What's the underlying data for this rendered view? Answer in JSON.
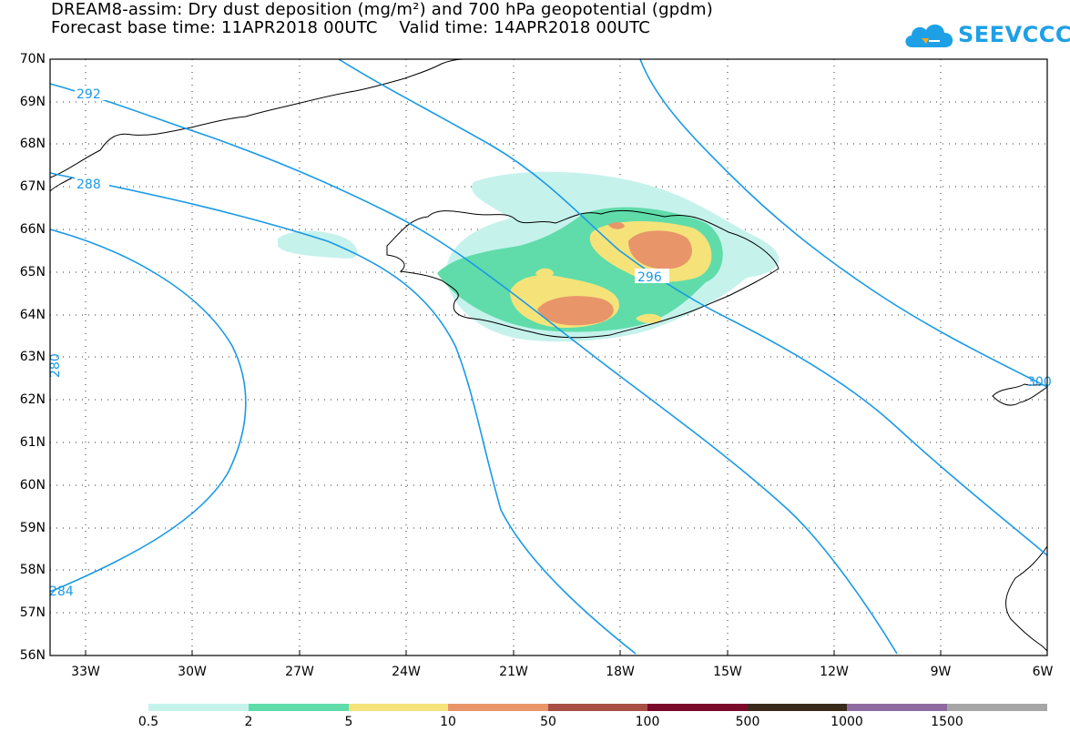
{
  "title_line1": "DREAM8-assim: Dry dust deposition (mg/m²) and 700 hPa geopotential (gpdm)",
  "title_line2": "Forecast base time: 11APR2018 00UTC    Valid time: 14APR2018 00UTC",
  "logo_text": "SEEVCCC",
  "map": {
    "lon_range": [
      -34,
      -6
    ],
    "lat_range": [
      56,
      70
    ],
    "y_ticks": [
      "70N",
      "69N",
      "68N",
      "67N",
      "66N",
      "65N",
      "64N",
      "63N",
      "62N",
      "61N",
      "60N",
      "59N",
      "58N",
      "57N",
      "56N"
    ],
    "x_ticks": [
      "33W",
      "30W",
      "27W",
      "24W",
      "21W",
      "18W",
      "15W",
      "12W",
      "9W",
      "6W"
    ],
    "contour_labels": [
      "292",
      "288",
      "296",
      "280",
      "284",
      "300"
    ]
  },
  "colorbar": {
    "labels": [
      "0.5",
      "2",
      "5",
      "10",
      "50",
      "100",
      "500",
      "1000",
      "1500"
    ],
    "colors": [
      "#c6f2ec",
      "#5fdcaa",
      "#f5e37a",
      "#e8956a",
      "#a84e44",
      "#7a0a2a",
      "#3a2a1a",
      "#8e6a9e",
      "#a6a6a6"
    ]
  },
  "contour_color": "#1a9ae6"
}
